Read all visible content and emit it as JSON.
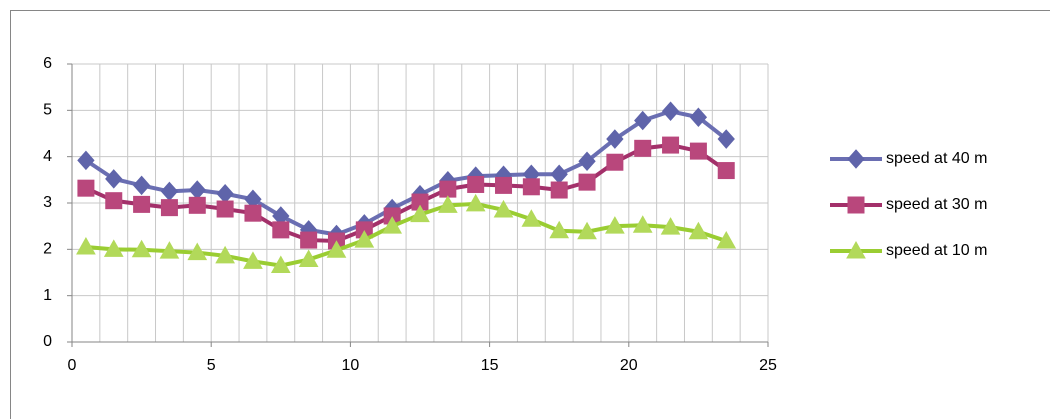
{
  "chart_data": {
    "type": "line",
    "x": [
      0.5,
      1.5,
      2.5,
      3.5,
      4.5,
      5.5,
      6.5,
      7.5,
      8.5,
      9.5,
      10.5,
      11.5,
      12.5,
      13.5,
      14.5,
      15.5,
      16.5,
      17.5,
      18.5,
      19.5,
      20.5,
      21.5,
      22.5,
      23.5
    ],
    "series": [
      {
        "name": "speed at 40 m",
        "color": "#6a6eb2",
        "marker_color": "#5f64aa",
        "marker": "diamond",
        "values": [
          3.92,
          3.52,
          3.38,
          3.25,
          3.28,
          3.2,
          3.08,
          2.72,
          2.42,
          2.32,
          2.55,
          2.88,
          3.18,
          3.48,
          3.58,
          3.6,
          3.62,
          3.62,
          3.9,
          4.38,
          4.78,
          4.98,
          4.85,
          4.38
        ]
      },
      {
        "name": "speed at 30 m",
        "color": "#a3306a",
        "marker_color": "#b9477c",
        "marker": "square",
        "values": [
          3.32,
          3.05,
          2.97,
          2.9,
          2.95,
          2.87,
          2.78,
          2.42,
          2.2,
          2.18,
          2.42,
          2.72,
          3.02,
          3.3,
          3.4,
          3.38,
          3.35,
          3.28,
          3.45,
          3.88,
          4.18,
          4.25,
          4.12,
          3.7
        ]
      },
      {
        "name": "speed at 10 m",
        "color": "#9acd32",
        "marker_color": "#b2d95a",
        "marker": "triangle",
        "values": [
          2.05,
          2.0,
          1.99,
          1.96,
          1.93,
          1.86,
          1.74,
          1.65,
          1.78,
          1.98,
          2.2,
          2.5,
          2.75,
          2.95,
          2.98,
          2.85,
          2.65,
          2.4,
          2.38,
          2.5,
          2.52,
          2.48,
          2.38,
          2.18
        ]
      }
    ],
    "xlim": [
      0,
      25
    ],
    "xticks": [
      0,
      5,
      10,
      15,
      20,
      25
    ],
    "xgrid": [
      1,
      2,
      3,
      4,
      5,
      6,
      7,
      8,
      9,
      10,
      11,
      12,
      13,
      14,
      15,
      16,
      17,
      18,
      19,
      20,
      21,
      22,
      23,
      24,
      25
    ],
    "ylim": [
      0,
      6
    ],
    "yticks": [
      0,
      1,
      2,
      3,
      4,
      5,
      6
    ],
    "grid": true,
    "legend": "right"
  }
}
